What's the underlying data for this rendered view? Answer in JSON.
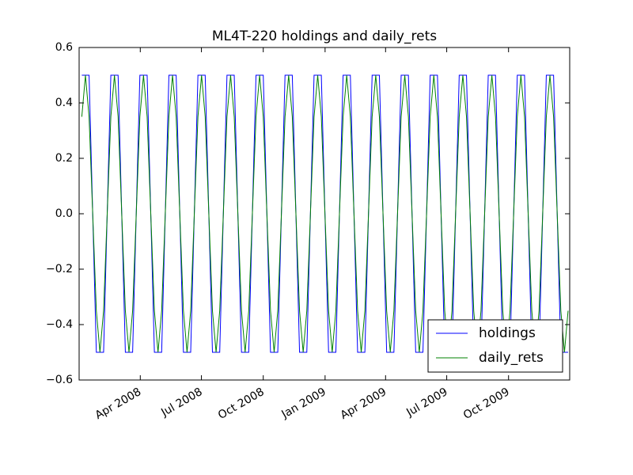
{
  "chart_data": {
    "type": "line",
    "title": "ML4T-220 holdings and daily_rets",
    "x": [
      4,
      9.4,
      14.8,
      20.2,
      25.6,
      31,
      36.4,
      41.8,
      47.2,
      52.6,
      58,
      63.4,
      68.8,
      74.2,
      79.6,
      85,
      90.4,
      95.8,
      101.2,
      106.6,
      112,
      117.4,
      122.8,
      128.2,
      133.6,
      139,
      144.4,
      149.8,
      155.2,
      160.6,
      166,
      171.4,
      176.8,
      182.2,
      187.6,
      193,
      198.4,
      203.8,
      209.2,
      214.6,
      220,
      225.4,
      230.8,
      236.2,
      241.6,
      247,
      252.4,
      257.8,
      263.2,
      268.6,
      274,
      279.4,
      284.8,
      290.2,
      295.6,
      301,
      306.4,
      311.8,
      317.2,
      322.6,
      328,
      333.4,
      338.8,
      344.2,
      349.6,
      355,
      360.4,
      365.8,
      371.2,
      376.6,
      382,
      387.4,
      392.8,
      398.2,
      403.6,
      409,
      414.4,
      419.8,
      425.2,
      430.6,
      436,
      441.4,
      446.8,
      452.2,
      457.6,
      463,
      468.4,
      473.8,
      479.2,
      484.6,
      490,
      495.4,
      500.8,
      506.2,
      511.6,
      517,
      522.4,
      527.8,
      533.2,
      538.6,
      544,
      549.4,
      554.8,
      560.2,
      565.6,
      571,
      576.4,
      581.8,
      587.2,
      592.6,
      598,
      603.4,
      608.8,
      614.2,
      619.6,
      625,
      630.4,
      635.8,
      641.2,
      646.6,
      652,
      657.4,
      662.8,
      668.2,
      673.6,
      679,
      684.4,
      689.8,
      695.2,
      700.6,
      706,
      711.4,
      716.8,
      722.2,
      727.6
    ],
    "series": [
      {
        "name": "holdings",
        "color": "#0000ff",
        "values": [
          0.5,
          0.5,
          0.5,
          0,
          -0.5,
          -0.5,
          -0.5,
          0,
          0.5,
          0.5,
          0.5,
          0,
          -0.5,
          -0.5,
          -0.5,
          0,
          0.5,
          0.5,
          0.5,
          0,
          -0.5,
          -0.5,
          -0.5,
          0,
          0.5,
          0.5,
          0.5,
          0,
          -0.5,
          -0.5,
          -0.5,
          0,
          0.5,
          0.5,
          0.5,
          0,
          -0.5,
          -0.5,
          -0.5,
          0,
          0.5,
          0.5,
          0.5,
          0,
          -0.5,
          -0.5,
          -0.5,
          0,
          0.5,
          0.5,
          0.5,
          0,
          -0.5,
          -0.5,
          -0.5,
          0,
          0.5,
          0.5,
          0.5,
          0,
          -0.5,
          -0.5,
          -0.5,
          0,
          0.5,
          0.5,
          0.5,
          0,
          -0.5,
          -0.5,
          -0.5,
          0,
          0.5,
          0.5,
          0.5,
          0,
          -0.5,
          -0.5,
          -0.5,
          0,
          0.5,
          0.5,
          0.5,
          0,
          -0.5,
          -0.5,
          -0.5,
          0,
          0.5,
          0.5,
          0.5,
          0,
          -0.5,
          -0.5,
          -0.5,
          0,
          0.5,
          0.5,
          0.5,
          0,
          -0.5,
          -0.5,
          -0.5,
          0,
          0.5,
          0.5,
          0.5,
          0,
          -0.5,
          -0.5,
          -0.5,
          0,
          0.5,
          0.5,
          0.5,
          0,
          -0.5,
          -0.5,
          -0.5,
          0,
          0.5,
          0.5,
          0.5,
          0,
          -0.5,
          -0.5,
          -0.5,
          0,
          0.5,
          0.5,
          0.5,
          0,
          -0.5,
          -0.5,
          -0.5
        ]
      },
      {
        "name": "daily_rets",
        "color": "#008000",
        "values": [
          0.35,
          0.5,
          0.35,
          0,
          -0.35,
          -0.5,
          -0.35,
          0,
          0.35,
          0.5,
          0.35,
          0,
          -0.35,
          -0.5,
          -0.35,
          0,
          0.35,
          0.5,
          0.35,
          0,
          -0.35,
          -0.5,
          -0.35,
          0,
          0.35,
          0.5,
          0.35,
          0,
          -0.35,
          -0.5,
          -0.35,
          0,
          0.35,
          0.5,
          0.35,
          0,
          -0.35,
          -0.5,
          -0.35,
          0,
          0.35,
          0.5,
          0.35,
          0,
          -0.35,
          -0.5,
          -0.35,
          0,
          0.35,
          0.5,
          0.35,
          0,
          -0.35,
          -0.5,
          -0.35,
          0,
          0.35,
          0.5,
          0.35,
          0,
          -0.35,
          -0.5,
          -0.35,
          0,
          0.35,
          0.5,
          0.35,
          0,
          -0.35,
          -0.5,
          -0.35,
          0,
          0.35,
          0.5,
          0.35,
          0,
          -0.35,
          -0.5,
          -0.35,
          0,
          0.35,
          0.5,
          0.35,
          0,
          -0.35,
          -0.5,
          -0.35,
          0,
          0.35,
          0.5,
          0.35,
          0,
          -0.35,
          -0.5,
          -0.35,
          0,
          0.35,
          0.5,
          0.35,
          0,
          -0.35,
          -0.5,
          -0.35,
          0,
          0.35,
          0.5,
          0.35,
          0,
          -0.35,
          -0.5,
          -0.35,
          0,
          0.35,
          0.5,
          0.35,
          0,
          -0.35,
          -0.5,
          -0.35,
          0,
          0.35,
          0.5,
          0.35,
          0,
          -0.35,
          -0.5,
          -0.35,
          0,
          0.35,
          0.5,
          0.35,
          0,
          -0.35,
          -0.5,
          -0.35
        ]
      }
    ],
    "xlim": [
      0,
      730
    ],
    "xticks": [
      {
        "value": 91,
        "label": "Apr 2008"
      },
      {
        "value": 182,
        "label": "Jul 2008"
      },
      {
        "value": 274,
        "label": "Oct 2008"
      },
      {
        "value": 366,
        "label": "Jan 2009"
      },
      {
        "value": 456,
        "label": "Apr 2009"
      },
      {
        "value": 547,
        "label": "Jul 2009"
      },
      {
        "value": 639,
        "label": "Oct 2009"
      }
    ],
    "ylim": [
      -0.6,
      0.6
    ],
    "yticks": [
      {
        "value": -0.6,
        "label": "−0.6"
      },
      {
        "value": -0.4,
        "label": "−0.4"
      },
      {
        "value": -0.2,
        "label": "−0.2"
      },
      {
        "value": 0,
        "label": "0.0"
      },
      0.2,
      0.4,
      0.6
    ],
    "legend": "lower right"
  }
}
